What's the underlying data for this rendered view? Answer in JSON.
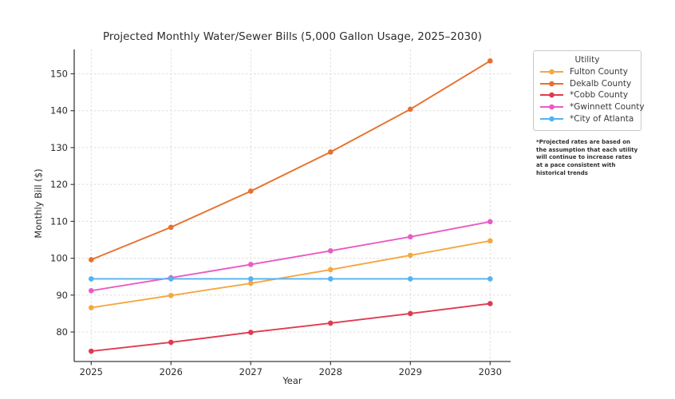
{
  "legend": {
    "title": "Utility"
  },
  "footnote": "*Projected rates are based on\nthe assumption that each utility\nwill continue to increase rates\nat a pace consistent with\nhistorical trends",
  "chart_data": {
    "type": "line",
    "title": "Projected Monthly Water/Sewer Bills (5,000 Gallon Usage, 2025–2030)",
    "xlabel": "Year",
    "ylabel": "Monthly Bill ($)",
    "x": [
      2025,
      2026,
      2027,
      2028,
      2029,
      2030
    ],
    "xtick_labels": [
      "2025",
      "2026",
      "2027",
      "2028",
      "2029",
      "2030"
    ],
    "yticks": [
      80,
      90,
      100,
      110,
      120,
      130,
      140,
      150
    ],
    "xlim": [
      2024.787,
      2030.257
    ],
    "ylim": [
      72.0,
      156.6
    ],
    "grid": true,
    "grid_style": "dashed",
    "legend_position": "right",
    "legend_title": "Utility",
    "series": [
      {
        "name": "Fulton County",
        "color": "#F5A742",
        "values": [
          86.6,
          89.9,
          93.2,
          96.9,
          100.8,
          104.7
        ]
      },
      {
        "name": "Dekalb County",
        "color": "#E7702D",
        "values": [
          99.6,
          108.4,
          118.2,
          128.8,
          140.4,
          153.5
        ]
      },
      {
        "name": "*Cobb County",
        "color": "#E13A50",
        "values": [
          74.8,
          77.2,
          79.9,
          82.4,
          85.0,
          87.7
        ]
      },
      {
        "name": "*Gwinnett County",
        "color": "#E95BC5",
        "values": [
          91.2,
          94.7,
          98.3,
          102.0,
          105.8,
          109.9
        ]
      },
      {
        "name": "*City of Atlanta",
        "color": "#55B2F1",
        "values": [
          94.4,
          94.4,
          94.4,
          94.4,
          94.4,
          94.4
        ]
      }
    ],
    "colors": {
      "grid": "#dcdcdc",
      "spine": "#3c3c3c",
      "tick_text": "#2b2b2b"
    }
  }
}
